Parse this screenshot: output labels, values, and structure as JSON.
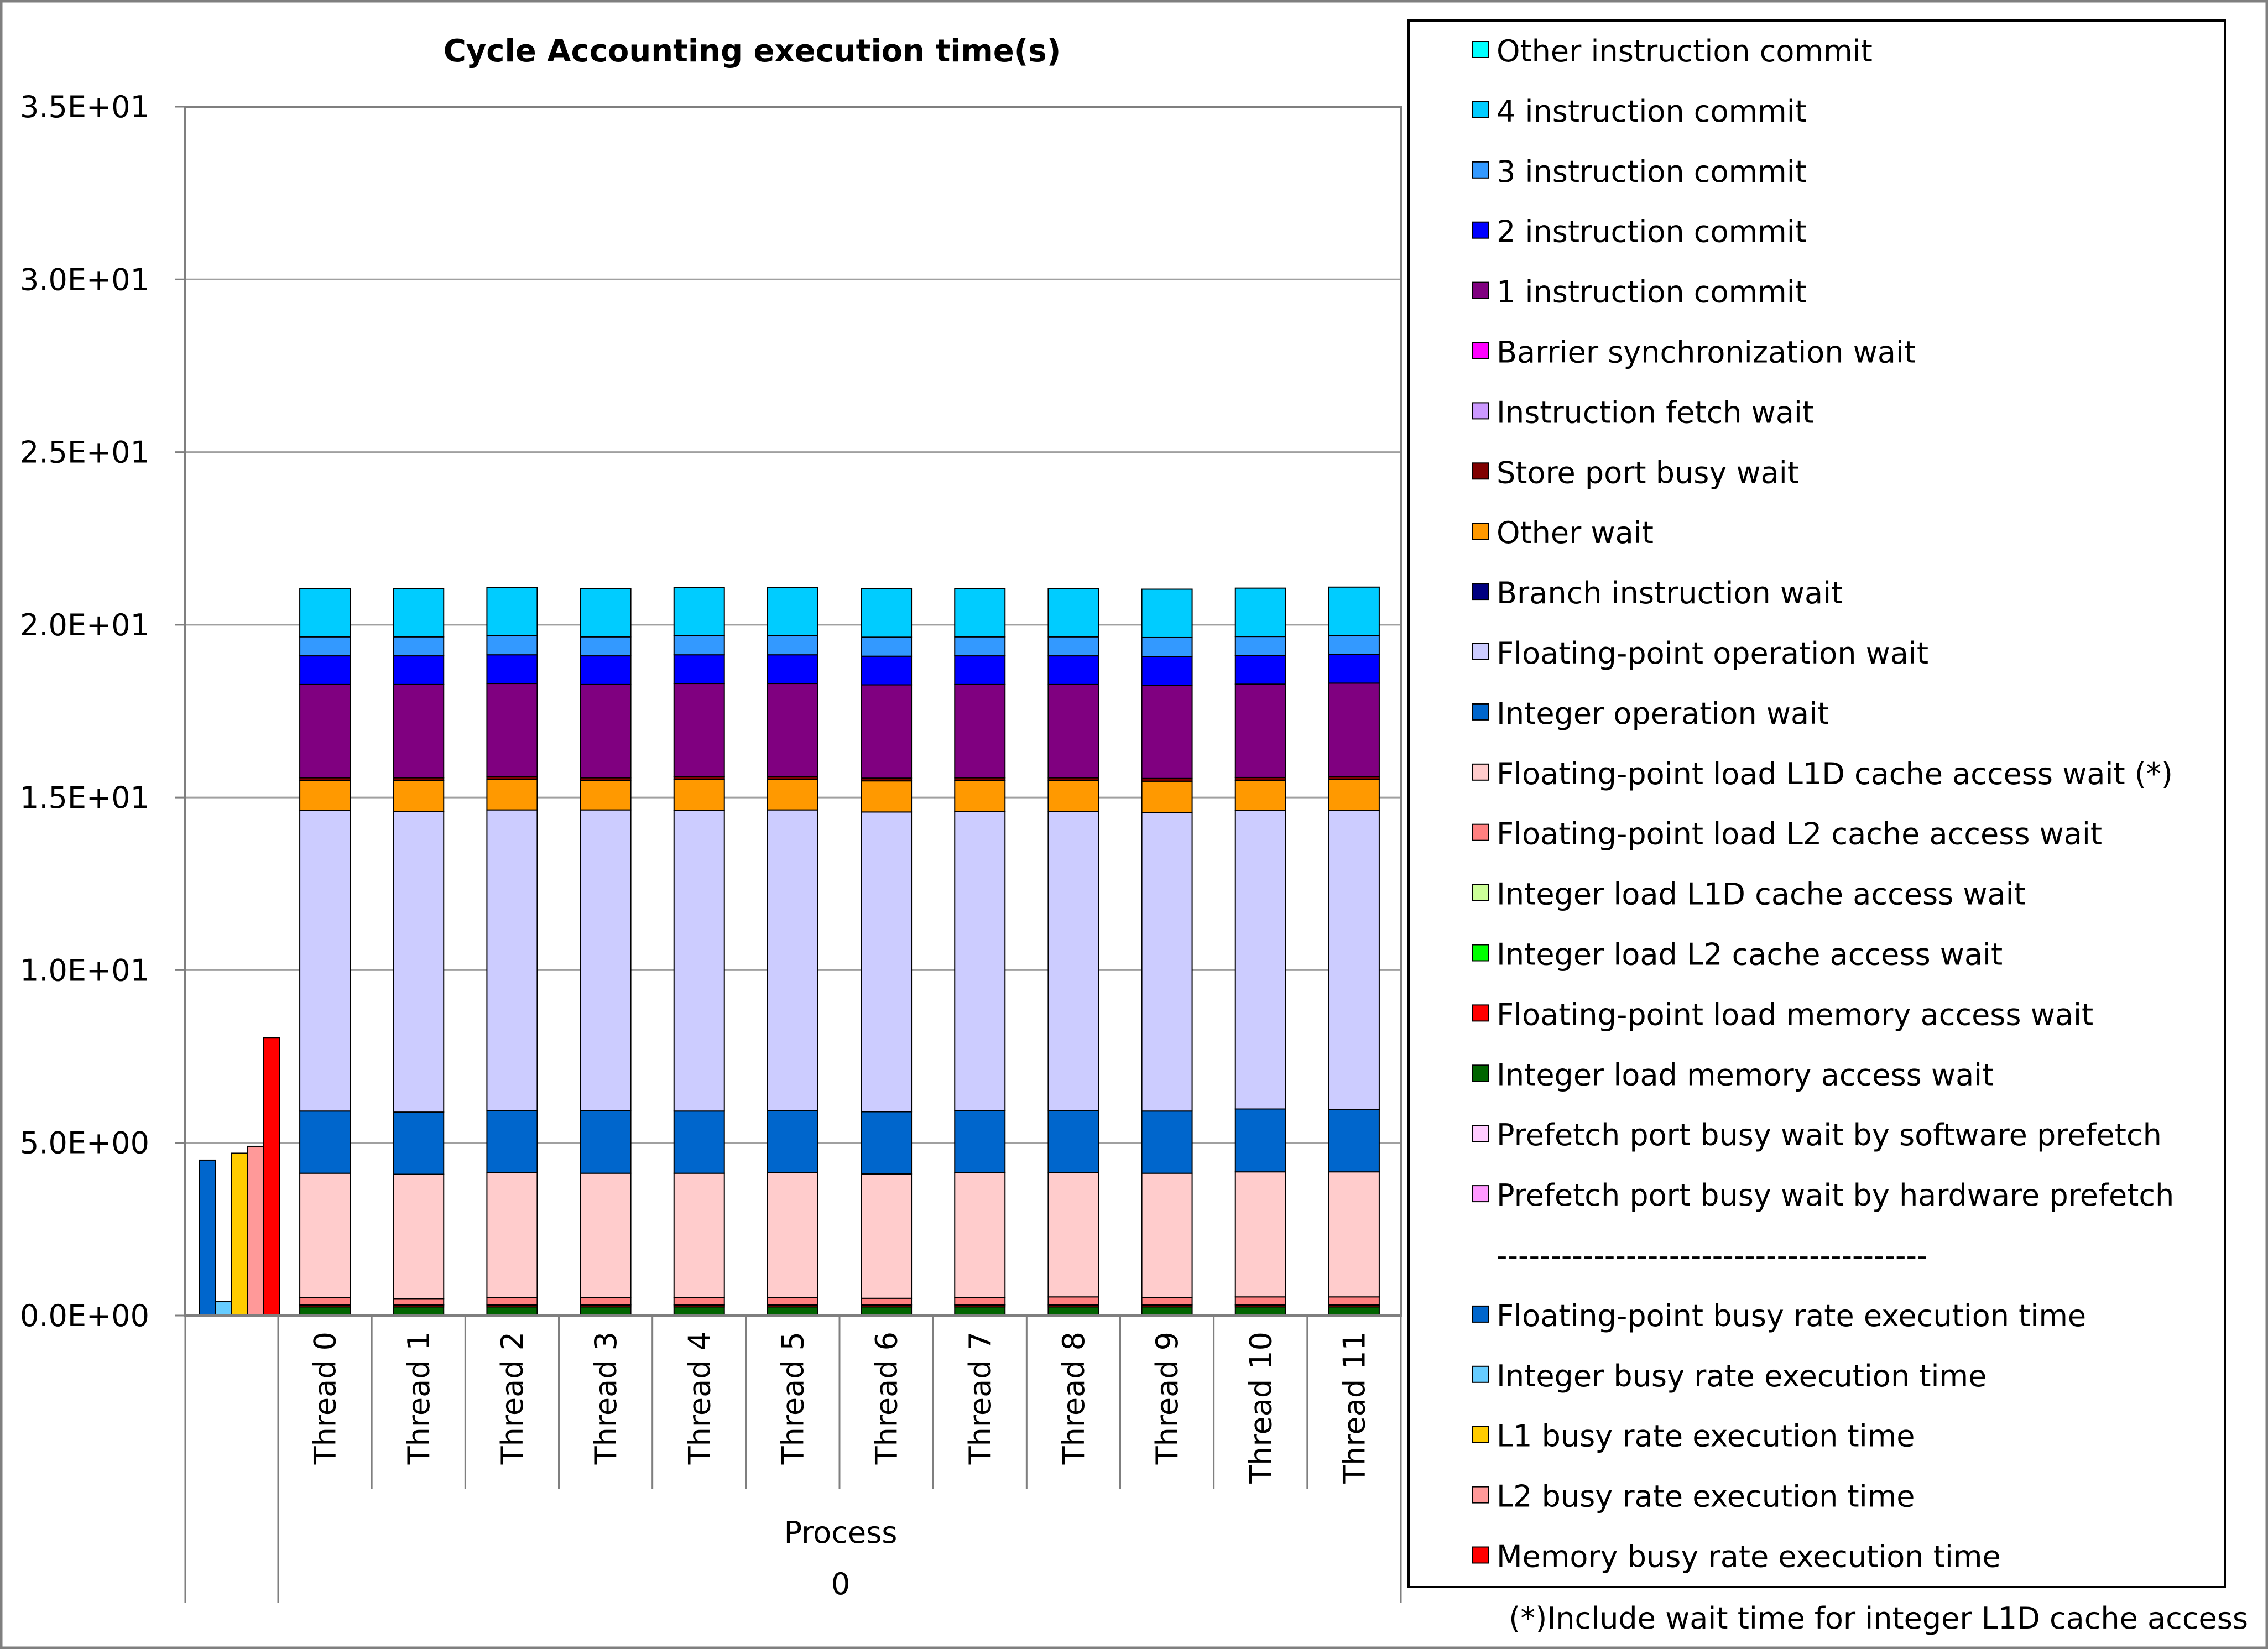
{
  "chart_data": {
    "type": "bar",
    "title": "Cycle Accounting execution time(s)",
    "ylim": [
      0,
      35
    ],
    "y_ticks": [
      {
        "value": 0,
        "label": "0.0E+00"
      },
      {
        "value": 5,
        "label": "5.0E+00"
      },
      {
        "value": 10,
        "label": "1.0E+01"
      },
      {
        "value": 15,
        "label": "1.5E+01"
      },
      {
        "value": 20,
        "label": "2.0E+01"
      },
      {
        "value": 25,
        "label": "2.5E+01"
      },
      {
        "value": 30,
        "label": "3.0E+01"
      },
      {
        "value": 35,
        "label": "3.5E+01"
      }
    ],
    "categories": [
      "Thread 0",
      "Thread 1",
      "Thread 2",
      "Thread 3",
      "Thread 4",
      "Thread 5",
      "Thread 6",
      "Thread 7",
      "Thread 8",
      "Thread 9",
      "Thread 10",
      "Thread 11"
    ],
    "group_label": "Process",
    "group_value": "0",
    "stack_series": [
      {
        "name": "Integer load memory access wait",
        "color": "#006400",
        "values": [
          0.25,
          0.25,
          0.25,
          0.25,
          0.25,
          0.25,
          0.25,
          0.25,
          0.25,
          0.25,
          0.25,
          0.25
        ]
      },
      {
        "name": "Floating-point load memory access wait",
        "color": "#ff0000",
        "values": [
          0.05,
          0.05,
          0.05,
          0.05,
          0.05,
          0.05,
          0.05,
          0.05,
          0.05,
          0.05,
          0.05,
          0.05
        ]
      },
      {
        "name": "Integer load L2 cache access wait",
        "color": "#00ff00",
        "values": [
          0.02,
          0.02,
          0.02,
          0.02,
          0.02,
          0.02,
          0.02,
          0.02,
          0.02,
          0.02,
          0.02,
          0.02
        ]
      },
      {
        "name": "Floating-point load L2 cache access wait",
        "color": "#ff8080",
        "values": [
          0.2,
          0.17,
          0.2,
          0.2,
          0.2,
          0.2,
          0.18,
          0.2,
          0.22,
          0.2,
          0.22,
          0.22
        ]
      },
      {
        "name": "Floating-point load L1D cache access wait (*)",
        "color": "#ffcccc",
        "values": [
          3.6,
          3.6,
          3.62,
          3.6,
          3.6,
          3.62,
          3.6,
          3.62,
          3.6,
          3.6,
          3.62,
          3.62
        ]
      },
      {
        "name": "Integer operation wait",
        "color": "#0066cc",
        "values": [
          1.8,
          1.8,
          1.8,
          1.82,
          1.8,
          1.8,
          1.8,
          1.8,
          1.8,
          1.8,
          1.82,
          1.8
        ]
      },
      {
        "name": "Floating-point operation wait",
        "color": "#ccccff",
        "values": [
          8.7,
          8.7,
          8.7,
          8.7,
          8.7,
          8.7,
          8.68,
          8.65,
          8.65,
          8.65,
          8.65,
          8.67
        ]
      },
      {
        "name": "Other wait",
        "color": "#ff9900",
        "values": [
          0.87,
          0.9,
          0.88,
          0.85,
          0.9,
          0.88,
          0.9,
          0.9,
          0.9,
          0.9,
          0.87,
          0.9
        ]
      },
      {
        "name": "Store port busy wait",
        "color": "#800000",
        "values": [
          0.08,
          0.08,
          0.08,
          0.08,
          0.08,
          0.08,
          0.08,
          0.08,
          0.08,
          0.08,
          0.08,
          0.08
        ]
      },
      {
        "name": "1 instruction commit",
        "color": "#800080",
        "values": [
          2.7,
          2.7,
          2.7,
          2.7,
          2.7,
          2.7,
          2.7,
          2.7,
          2.7,
          2.7,
          2.7,
          2.7
        ]
      },
      {
        "name": "2 instruction commit",
        "color": "#0000ff",
        "values": [
          0.83,
          0.83,
          0.83,
          0.83,
          0.83,
          0.83,
          0.83,
          0.83,
          0.83,
          0.83,
          0.83,
          0.83
        ]
      },
      {
        "name": "3 instruction commit",
        "color": "#3399ff",
        "values": [
          0.55,
          0.55,
          0.55,
          0.55,
          0.55,
          0.55,
          0.55,
          0.55,
          0.55,
          0.55,
          0.55,
          0.55
        ]
      },
      {
        "name": "4 instruction commit",
        "color": "#00ccff",
        "values": [
          1.4,
          1.4,
          1.4,
          1.4,
          1.4,
          1.4,
          1.4,
          1.4,
          1.4,
          1.4,
          1.4,
          1.4
        ]
      }
    ],
    "process_bars": [
      {
        "name": "Floating-point busy rate execution time",
        "color": "#0066cc",
        "value": 4.5
      },
      {
        "name": "Integer busy rate execution time",
        "color": "#66ccff",
        "value": 0.4
      },
      {
        "name": "L1 busy rate execution time",
        "color": "#ffcc00",
        "value": 4.7
      },
      {
        "name": "L2 busy rate execution time",
        "color": "#ff9999",
        "value": 4.9
      },
      {
        "name": "Memory busy rate execution time",
        "color": "#ff0000",
        "value": 8.05
      }
    ],
    "legend": [
      {
        "label": "Other instruction commit",
        "color": "#00ffff"
      },
      {
        "label": "4 instruction commit",
        "color": "#00ccff"
      },
      {
        "label": "3 instruction commit",
        "color": "#3399ff"
      },
      {
        "label": "2 instruction commit",
        "color": "#0000ff"
      },
      {
        "label": "1 instruction commit",
        "color": "#800080"
      },
      {
        "label": "Barrier synchronization wait",
        "color": "#ff00ff"
      },
      {
        "label": "Instruction fetch wait",
        "color": "#cc99ff"
      },
      {
        "label": "Store port busy wait",
        "color": "#800000"
      },
      {
        "label": "Other wait",
        "color": "#ff9900"
      },
      {
        "label": "Branch instruction wait",
        "color": "#000080"
      },
      {
        "label": "Floating-point operation wait",
        "color": "#ccccff"
      },
      {
        "label": "Integer operation wait",
        "color": "#0066cc"
      },
      {
        "label": "Floating-point load L1D cache access wait (*)",
        "color": "#ffcccc"
      },
      {
        "label": "Floating-point load L2 cache access wait",
        "color": "#ff8080"
      },
      {
        "label": "Integer load L1D cache access wait",
        "color": "#ccff99"
      },
      {
        "label": "Integer load L2 cache access wait",
        "color": "#00ff00"
      },
      {
        "label": "Floating-point load memory access wait",
        "color": "#ff0000"
      },
      {
        "label": "Integer load memory access wait",
        "color": "#006400"
      },
      {
        "label": "Prefetch port busy wait by software prefetch",
        "color": "#ffccff"
      },
      {
        "label": "Prefetch port busy wait by hardware prefetch",
        "color": "#ff99ff"
      },
      {
        "label": "----------------------------------------",
        "color": null
      },
      {
        "label": "Floating-point busy rate execution time",
        "color": "#0066cc"
      },
      {
        "label": "Integer busy rate execution time",
        "color": "#66ccff"
      },
      {
        "label": "L1 busy rate execution time",
        "color": "#ffcc00"
      },
      {
        "label": "L2 busy rate execution time",
        "color": "#ff9999"
      },
      {
        "label": "Memory busy rate execution time",
        "color": "#ff0000"
      }
    ],
    "footnote": "(*)Include wait time for integer L1D cache access"
  }
}
